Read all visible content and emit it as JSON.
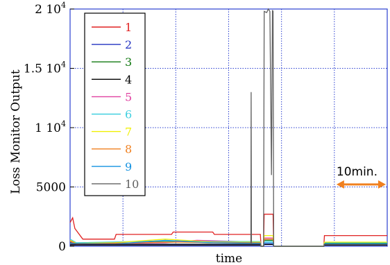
{
  "chart_data": {
    "type": "line",
    "title": "",
    "xlabel": "time",
    "ylabel": "Loss Monitor Output",
    "ylim": [
      0,
      20000
    ],
    "xlim": [
      0,
      100
    ],
    "grid": "dotted-blue",
    "legend_position": "top-left",
    "y_ticks": [
      {
        "value": 0,
        "label": "0",
        "sup": ""
      },
      {
        "value": 5000,
        "label": "5000",
        "sup": ""
      },
      {
        "value": 10000,
        "label": "1 10",
        "sup": "4"
      },
      {
        "value": 15000,
        "label": "1.5 10",
        "sup": "4"
      },
      {
        "value": 20000,
        "label": "2 10",
        "sup": "4"
      }
    ],
    "annotation": {
      "text": "10min.",
      "arrow_color": "#f08020",
      "x_start": 84,
      "x_end": 100,
      "y": 5800
    },
    "series": [
      {
        "name": "1",
        "color": "#e02020",
        "points": [
          [
            0,
            2000
          ],
          [
            0.8,
            2400
          ],
          [
            1.5,
            1500
          ],
          [
            4,
            600
          ],
          [
            14,
            600
          ],
          [
            14.5,
            1000
          ],
          [
            32,
            1000
          ],
          [
            32.5,
            1200
          ],
          [
            45,
            1200
          ],
          [
            45.5,
            1000
          ],
          [
            60,
            1000
          ],
          [
            60.2,
            0
          ],
          [
            61,
            0
          ],
          [
            61.2,
            2700
          ],
          [
            64,
            2700
          ],
          [
            64.2,
            0
          ],
          [
            80,
            0
          ],
          [
            80.2,
            900
          ],
          [
            100,
            900
          ]
        ]
      },
      {
        "name": "2",
        "color": "#2030c0",
        "points": [
          [
            0,
            150
          ],
          [
            60,
            150
          ],
          [
            60.2,
            0
          ],
          [
            61,
            0
          ],
          [
            61.2,
            200
          ],
          [
            64,
            200
          ],
          [
            64.2,
            0
          ],
          [
            80,
            0
          ],
          [
            80.2,
            150
          ],
          [
            100,
            150
          ]
        ]
      },
      {
        "name": "3",
        "color": "#107810",
        "points": [
          [
            0,
            300
          ],
          [
            14,
            200
          ],
          [
            30,
            400
          ],
          [
            45,
            300
          ],
          [
            60,
            300
          ],
          [
            60.2,
            0
          ],
          [
            61,
            0
          ],
          [
            61.2,
            500
          ],
          [
            64,
            500
          ],
          [
            64.2,
            0
          ],
          [
            80,
            0
          ],
          [
            80.2,
            250
          ],
          [
            100,
            250
          ]
        ]
      },
      {
        "name": "4",
        "color": "#000000",
        "points": [
          [
            0,
            100
          ],
          [
            60,
            100
          ],
          [
            60.2,
            0
          ],
          [
            61,
            0
          ],
          [
            61.2,
            150
          ],
          [
            64,
            150
          ],
          [
            64.2,
            0
          ],
          [
            80,
            0
          ],
          [
            80.2,
            100
          ],
          [
            100,
            100
          ]
        ]
      },
      {
        "name": "5",
        "color": "#e040a0",
        "points": [
          [
            0,
            400
          ],
          [
            2,
            200
          ],
          [
            30,
            300
          ],
          [
            40,
            500
          ],
          [
            60,
            350
          ],
          [
            60.2,
            0
          ],
          [
            61,
            0
          ],
          [
            61.2,
            700
          ],
          [
            64,
            700
          ],
          [
            64.2,
            0
          ],
          [
            80,
            0
          ],
          [
            80.2,
            200
          ],
          [
            100,
            200
          ]
        ]
      },
      {
        "name": "6",
        "color": "#40d0e0",
        "points": [
          [
            0,
            600
          ],
          [
            2,
            300
          ],
          [
            30,
            450
          ],
          [
            45,
            400
          ],
          [
            60,
            400
          ],
          [
            60.2,
            0
          ],
          [
            61,
            0
          ],
          [
            61.2,
            400
          ],
          [
            64,
            400
          ],
          [
            64.2,
            0
          ],
          [
            80,
            0
          ],
          [
            80.2,
            300
          ],
          [
            100,
            300
          ]
        ]
      },
      {
        "name": "7",
        "color": "#f0f000",
        "points": [
          [
            0,
            500
          ],
          [
            2,
            250
          ],
          [
            14,
            300
          ],
          [
            30,
            600
          ],
          [
            45,
            350
          ],
          [
            60,
            350
          ],
          [
            60.2,
            0
          ],
          [
            61,
            0
          ],
          [
            61.2,
            900
          ],
          [
            64,
            900
          ],
          [
            64.2,
            0
          ],
          [
            80,
            0
          ],
          [
            80.2,
            350
          ],
          [
            100,
            350
          ]
        ]
      },
      {
        "name": "8",
        "color": "#f08020",
        "points": [
          [
            0,
            450
          ],
          [
            2,
            200
          ],
          [
            30,
            350
          ],
          [
            60,
            300
          ],
          [
            60.2,
            0
          ],
          [
            61,
            0
          ],
          [
            61.2,
            600
          ],
          [
            64,
            600
          ],
          [
            64.2,
            0
          ],
          [
            80,
            0
          ],
          [
            80.2,
            200
          ],
          [
            100,
            200
          ]
        ]
      },
      {
        "name": "9",
        "color": "#1090e0",
        "points": [
          [
            0,
            250
          ],
          [
            14,
            200
          ],
          [
            30,
            500
          ],
          [
            45,
            300
          ],
          [
            60,
            250
          ],
          [
            60.2,
            0
          ],
          [
            61,
            0
          ],
          [
            61.2,
            300
          ],
          [
            64,
            300
          ],
          [
            64.2,
            0
          ],
          [
            80,
            0
          ],
          [
            80.2,
            200
          ],
          [
            100,
            200
          ]
        ]
      },
      {
        "name": "10",
        "color": "#606060",
        "points": [
          [
            0,
            200
          ],
          [
            57,
            200
          ],
          [
            57.1,
            13000
          ],
          [
            57.2,
            200
          ],
          [
            60,
            200
          ],
          [
            60.2,
            0
          ],
          [
            61,
            0
          ],
          [
            61.2,
            19800
          ],
          [
            62,
            19700
          ],
          [
            62.5,
            20000
          ],
          [
            63,
            19800
          ],
          [
            63.5,
            6000
          ],
          [
            63.8,
            19900
          ],
          [
            64,
            19800
          ],
          [
            64.2,
            0
          ],
          [
            80,
            0
          ],
          [
            80.2,
            150
          ],
          [
            100,
            150
          ]
        ]
      }
    ]
  }
}
